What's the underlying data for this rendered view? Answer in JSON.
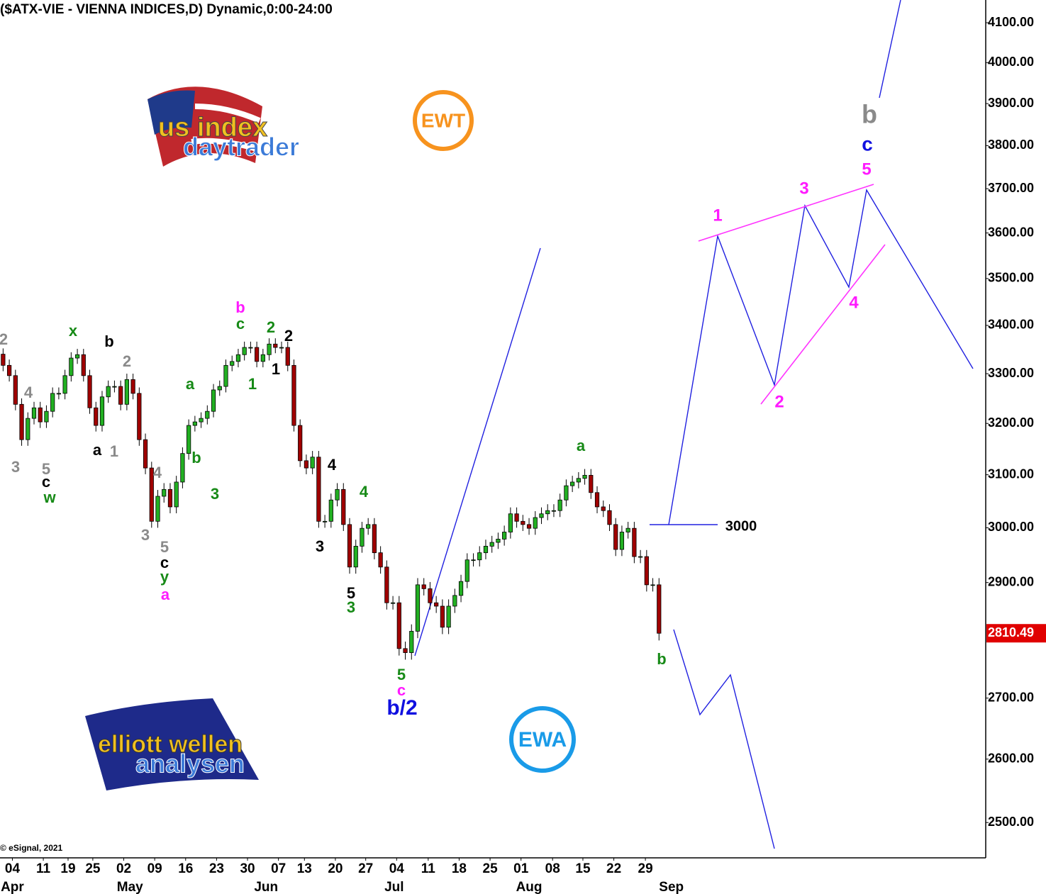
{
  "chart_data": {
    "type": "candlestick",
    "title": "($ATX-VIE - VIENNA INDICES,D) Dynamic,0:00-24:00",
    "credit": "© eSignal, 2021",
    "log_scale": true,
    "grid": false,
    "up_color": "#22b022",
    "down_color": "#a00000",
    "candles": [
      [
        3340,
        3352,
        3305,
        3317
      ],
      [
        3317,
        3329,
        3284,
        3296
      ],
      [
        3296,
        3308,
        3226,
        3238
      ],
      [
        3238,
        3250,
        3156,
        3168
      ],
      [
        3168,
        3222,
        3156,
        3210
      ],
      [
        3210,
        3243,
        3198,
        3231
      ],
      [
        3231,
        3243,
        3191,
        3203
      ],
      [
        3203,
        3236,
        3191,
        3224
      ],
      [
        3224,
        3272,
        3212,
        3260
      ],
      [
        3260,
        3272,
        3248,
        3260
      ],
      [
        3260,
        3308,
        3248,
        3296
      ],
      [
        3296,
        3344,
        3284,
        3332
      ],
      [
        3332,
        3351,
        3320,
        3339
      ],
      [
        3339,
        3351,
        3284,
        3296
      ],
      [
        3296,
        3308,
        3219,
        3231
      ],
      [
        3231,
        3243,
        3184,
        3196
      ],
      [
        3196,
        3265,
        3184,
        3253
      ],
      [
        3253,
        3286,
        3241,
        3274
      ],
      [
        3274,
        3286,
        3262,
        3274
      ],
      [
        3274,
        3286,
        3226,
        3238
      ],
      [
        3238,
        3300,
        3226,
        3288
      ],
      [
        3288,
        3300,
        3248,
        3260
      ],
      [
        3260,
        3272,
        3156,
        3168
      ],
      [
        3168,
        3180,
        3101,
        3113
      ],
      [
        3113,
        3125,
        3000,
        3012
      ],
      [
        3012,
        3071,
        3000,
        3059
      ],
      [
        3059,
        3084,
        3047,
        3072
      ],
      [
        3072,
        3084,
        3027,
        3039
      ],
      [
        3039,
        3098,
        3027,
        3086
      ],
      [
        3086,
        3153,
        3074,
        3141
      ],
      [
        3141,
        3208,
        3129,
        3196
      ],
      [
        3196,
        3215,
        3184,
        3203
      ],
      [
        3203,
        3222,
        3191,
        3210
      ],
      [
        3210,
        3236,
        3198,
        3224
      ],
      [
        3224,
        3279,
        3212,
        3267
      ],
      [
        3267,
        3286,
        3255,
        3274
      ],
      [
        3274,
        3329,
        3262,
        3317
      ],
      [
        3317,
        3337,
        3305,
        3325
      ],
      [
        3325,
        3351,
        3313,
        3339
      ],
      [
        3339,
        3366,
        3327,
        3354
      ],
      [
        3354,
        3366,
        3342,
        3354
      ],
      [
        3354,
        3366,
        3313,
        3325
      ],
      [
        3325,
        3351,
        3313,
        3339
      ],
      [
        3339,
        3373,
        3327,
        3361
      ],
      [
        3361,
        3373,
        3342,
        3354
      ],
      [
        3354,
        3366,
        3342,
        3354
      ],
      [
        3354,
        3366,
        3305,
        3317
      ],
      [
        3317,
        3329,
        3184,
        3196
      ],
      [
        3196,
        3208,
        3115,
        3127
      ],
      [
        3127,
        3139,
        3101,
        3113
      ],
      [
        3113,
        3146,
        3101,
        3134
      ],
      [
        3134,
        3146,
        3000,
        3012
      ],
      [
        3012,
        3024,
        3000,
        3012
      ],
      [
        3012,
        3064,
        3000,
        3052
      ],
      [
        3052,
        3084,
        3040,
        3072
      ],
      [
        3072,
        3084,
        2994,
        3006
      ],
      [
        3006,
        3018,
        2916,
        2928
      ],
      [
        2928,
        2978,
        2916,
        2966
      ],
      [
        2966,
        3011,
        2954,
        2999
      ],
      [
        2999,
        3018,
        2987,
        3006
      ],
      [
        3006,
        3018,
        2942,
        2954
      ],
      [
        2954,
        2966,
        2916,
        2928
      ],
      [
        2928,
        2940,
        2852,
        2864
      ],
      [
        2864,
        2876,
        2852,
        2864
      ],
      [
        2864,
        2876,
        2772,
        2784
      ],
      [
        2784,
        2796,
        2765,
        2777
      ],
      [
        2777,
        2826,
        2765,
        2814
      ],
      [
        2814,
        2908,
        2802,
        2896
      ],
      [
        2896,
        2908,
        2877,
        2889
      ],
      [
        2889,
        2901,
        2852,
        2864
      ],
      [
        2864,
        2876,
        2846,
        2858
      ],
      [
        2858,
        2870,
        2809,
        2821
      ],
      [
        2821,
        2870,
        2809,
        2858
      ],
      [
        2858,
        2889,
        2846,
        2877
      ],
      [
        2877,
        2914,
        2865,
        2902
      ],
      [
        2902,
        2953,
        2890,
        2941
      ],
      [
        2941,
        2953,
        2929,
        2941
      ],
      [
        2941,
        2966,
        2929,
        2954
      ],
      [
        2954,
        2978,
        2942,
        2966
      ],
      [
        2966,
        2985,
        2954,
        2973
      ],
      [
        2973,
        2991,
        2961,
        2979
      ],
      [
        2979,
        3004,
        2967,
        2992
      ],
      [
        2992,
        3038,
        2980,
        3026
      ],
      [
        3026,
        3038,
        3000,
        3012
      ],
      [
        3012,
        3024,
        2994,
        3006
      ],
      [
        3006,
        3018,
        2987,
        2999
      ],
      [
        2999,
        3031,
        2987,
        3019
      ],
      [
        3019,
        3038,
        3007,
        3026
      ],
      [
        3026,
        3044,
        3014,
        3032
      ],
      [
        3032,
        3044,
        3020,
        3032
      ],
      [
        3032,
        3064,
        3020,
        3052
      ],
      [
        3052,
        3091,
        3040,
        3079
      ],
      [
        3079,
        3098,
        3067,
        3086
      ],
      [
        3086,
        3105,
        3074,
        3093
      ],
      [
        3093,
        3111,
        3081,
        3099
      ],
      [
        3099,
        3111,
        3054,
        3066
      ],
      [
        3066,
        3078,
        3027,
        3039
      ],
      [
        3039,
        3051,
        3020,
        3032
      ],
      [
        3032,
        3044,
        2994,
        3006
      ],
      [
        3006,
        3018,
        2948,
        2960
      ],
      [
        2960,
        3004,
        2948,
        2992
      ],
      [
        2992,
        3011,
        2980,
        2999
      ],
      [
        2999,
        3011,
        2935,
        2947
      ],
      [
        2947,
        2959,
        2935,
        2947
      ],
      [
        2947,
        2959,
        2884,
        2896
      ],
      [
        2896,
        2908,
        2884,
        2896
      ],
      [
        2896,
        2908,
        2798,
        2810.49
      ]
    ],
    "xlim": [
      -0.5,
      158.8
    ],
    "xticks": [
      {
        "value": 1.5,
        "label": "04"
      },
      {
        "value": 6.5,
        "label": "11"
      },
      {
        "value": 10.5,
        "label": "19"
      },
      {
        "value": 14.5,
        "label": "25"
      },
      {
        "value": 19.5,
        "label": "02"
      },
      {
        "value": 24.5,
        "label": "09"
      },
      {
        "value": 29.5,
        "label": "16"
      },
      {
        "value": 34.5,
        "label": "23"
      },
      {
        "value": 39.5,
        "label": "30"
      },
      {
        "value": 44.5,
        "label": "07"
      },
      {
        "value": 48.7,
        "label": "13"
      },
      {
        "value": 53.7,
        "label": "20"
      },
      {
        "value": 58.6,
        "label": "27"
      },
      {
        "value": 63.6,
        "label": "04"
      },
      {
        "value": 68.7,
        "label": "11"
      },
      {
        "value": 73.7,
        "label": "18"
      },
      {
        "value": 78.7,
        "label": "25"
      },
      {
        "value": 83.7,
        "label": "01"
      },
      {
        "value": 88.8,
        "label": "08"
      },
      {
        "value": 93.7,
        "label": "15"
      },
      {
        "value": 98.7,
        "label": "22"
      },
      {
        "value": 103.8,
        "label": "29"
      }
    ],
    "month_labels": [
      {
        "value": 1.5,
        "label": "Apr"
      },
      {
        "value": 20.5,
        "label": "May"
      },
      {
        "value": 42.5,
        "label": "Jun"
      },
      {
        "value": 63.2,
        "label": "Jul"
      },
      {
        "value": 85,
        "label": "Aug"
      },
      {
        "value": 108,
        "label": "Sep"
      }
    ],
    "ylim": [
      2446,
      4158
    ],
    "yticks": [
      {
        "value": 2500,
        "label": "2500.00"
      },
      {
        "value": 2600,
        "label": "2600.00"
      },
      {
        "value": 2700,
        "label": "2700.00"
      },
      {
        "value": 2900,
        "label": "2900.00"
      },
      {
        "value": 3000,
        "label": "3000.00"
      },
      {
        "value": 3100,
        "label": "3100.00"
      },
      {
        "value": 3200,
        "label": "3200.00"
      },
      {
        "value": 3300,
        "label": "3300.00"
      },
      {
        "value": 3400,
        "label": "3400.00"
      },
      {
        "value": 3500,
        "label": "3500.00"
      },
      {
        "value": 3600,
        "label": "3600.00"
      },
      {
        "value": 3700,
        "label": "3700.00"
      },
      {
        "value": 3800,
        "label": "3800.00"
      },
      {
        "value": 3900,
        "label": "3900.00"
      },
      {
        "value": 4000,
        "label": "4000.00"
      },
      {
        "value": 4100,
        "label": "4100.00"
      }
    ],
    "annotations": [
      "2",
      "4",
      "3",
      "5",
      "c",
      "w",
      "x",
      "b",
      "2",
      "a",
      "1",
      "a",
      "b",
      "3",
      "4",
      "3",
      "5",
      "c",
      "y",
      "a",
      "b",
      "c",
      "2",
      "2",
      "1",
      "1",
      "4",
      "4",
      "3",
      "5",
      "3",
      "5",
      "c",
      "b/2",
      "a",
      "b",
      "1",
      "3",
      "5",
      "c",
      "b",
      "4",
      "2",
      "3000"
    ],
    "logos": {
      "ewt": "EWT",
      "ewa": "EWA",
      "us1": "us index",
      "us2": "daytrader",
      "el1": "elliott wellen",
      "el2": "analysen"
    }
  }
}
